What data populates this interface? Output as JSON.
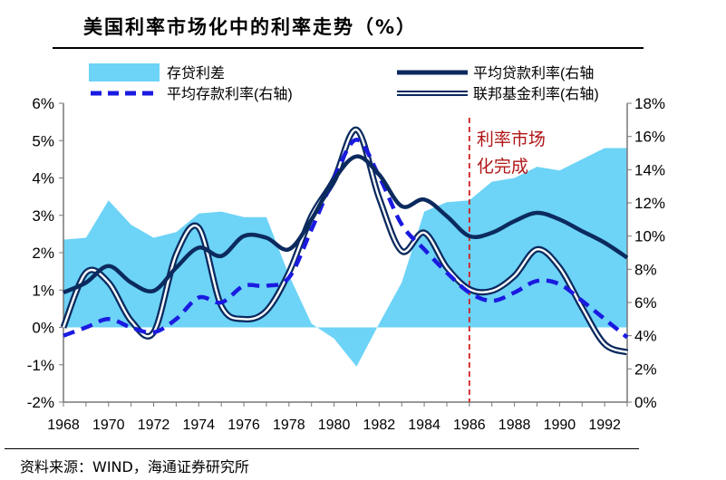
{
  "title": "美国利率市场化中的利率走势（%）",
  "source": "资料来源：WIND，海通证券研究所",
  "annotation": [
    "利率市场",
    "化完成"
  ],
  "colors": {
    "spread_fill": "#6dd3f7",
    "lending": "#0b2a5e",
    "deposit": "#1a1ae0",
    "fed": "#0b2a5e",
    "marker_line": "#d21e1e",
    "annotation_text": "#b01616"
  },
  "chart_data": {
    "type": "area",
    "x_ticks": [
      "1968",
      "1970",
      "1972",
      "1974",
      "1976",
      "1978",
      "1980",
      "1982",
      "1984",
      "1986",
      "1988",
      "1990",
      "1992"
    ],
    "xlim": [
      1968,
      1993
    ],
    "y_left": {
      "lim": [
        -2,
        6
      ],
      "ticks": [
        "-2%",
        "-1%",
        "0%",
        "1%",
        "2%",
        "3%",
        "4%",
        "5%",
        "6%"
      ]
    },
    "y_right": {
      "lim": [
        0,
        18
      ],
      "ticks": [
        "0%",
        "2%",
        "4%",
        "6%",
        "8%",
        "10%",
        "12%",
        "14%",
        "16%",
        "18%"
      ]
    },
    "legend": {
      "spread": "存贷利差",
      "lending": "平均贷款利率(右轴",
      "deposit": "平均存款利率(右轴)",
      "fed": "联邦基金利率(右轴)"
    },
    "vertical_marker_x": 1986,
    "series": [
      {
        "key": "spread",
        "name": "存贷利差",
        "axis": "left",
        "kind": "area",
        "x": [
          1968,
          1969,
          1970,
          1971,
          1972,
          1973,
          1974,
          1975,
          1976,
          1977,
          1978,
          1979,
          1980,
          1981,
          1982,
          1983,
          1984,
          1985,
          1986,
          1987,
          1988,
          1989,
          1990,
          1991,
          1992,
          1993
        ],
        "y": [
          2.35,
          2.4,
          3.4,
          2.75,
          2.4,
          2.55,
          3.05,
          3.1,
          2.95,
          2.95,
          1.4,
          0.1,
          -0.3,
          -1.05,
          0.1,
          1.2,
          3.1,
          3.35,
          3.4,
          3.9,
          4.0,
          4.3,
          4.2,
          4.5,
          4.8,
          4.8
        ]
      },
      {
        "key": "lending",
        "name": "平均贷款利率(右轴",
        "axis": "right",
        "kind": "line",
        "x": [
          1968,
          1969,
          1970,
          1971,
          1972,
          1973,
          1974,
          1975,
          1976,
          1977,
          1978,
          1979,
          1980,
          1981,
          1982,
          1983,
          1984,
          1985,
          1986,
          1987,
          1988,
          1989,
          1990,
          1991,
          1992,
          1993
        ],
        "y": [
          6.6,
          7.2,
          8.2,
          7.2,
          6.7,
          8.1,
          9.3,
          8.8,
          10.0,
          9.9,
          9.2,
          11.0,
          13.4,
          14.8,
          13.7,
          11.8,
          12.2,
          11.2,
          10.0,
          10.2,
          10.9,
          11.4,
          11.0,
          10.3,
          9.6,
          8.7
        ]
      },
      {
        "key": "deposit",
        "name": "平均存款利率(右轴)",
        "axis": "right",
        "kind": "dashed",
        "x": [
          1968,
          1969,
          1970,
          1971,
          1972,
          1973,
          1974,
          1975,
          1976,
          1977,
          1978,
          1979,
          1980,
          1981,
          1982,
          1983,
          1984,
          1985,
          1986,
          1987,
          1988,
          1989,
          1990,
          1991,
          1992,
          1993
        ],
        "y": [
          4.0,
          4.5,
          5.0,
          4.5,
          4.2,
          5.0,
          6.3,
          6.0,
          7.0,
          7.0,
          7.5,
          10.4,
          13.5,
          15.8,
          13.6,
          10.7,
          9.2,
          7.8,
          6.6,
          6.1,
          6.6,
          7.3,
          7.1,
          6.1,
          5.0,
          3.9
        ]
      },
      {
        "key": "fed",
        "name": "联邦基金利率(右轴)",
        "axis": "right",
        "kind": "double",
        "x": [
          1968,
          1969,
          1970,
          1971,
          1972,
          1973,
          1974,
          1975,
          1976,
          1977,
          1978,
          1979,
          1980,
          1981,
          1982,
          1983,
          1984,
          1985,
          1986,
          1987,
          1988,
          1989,
          1990,
          1991,
          1992,
          1993
        ],
        "y": [
          4.5,
          7.8,
          7.2,
          4.9,
          4.2,
          8.9,
          10.5,
          5.8,
          5.0,
          5.5,
          7.8,
          11.2,
          13.4,
          16.4,
          12.3,
          9.1,
          10.2,
          8.1,
          6.8,
          6.7,
          7.6,
          9.2,
          8.1,
          5.7,
          3.5,
          3.0
        ]
      }
    ]
  }
}
